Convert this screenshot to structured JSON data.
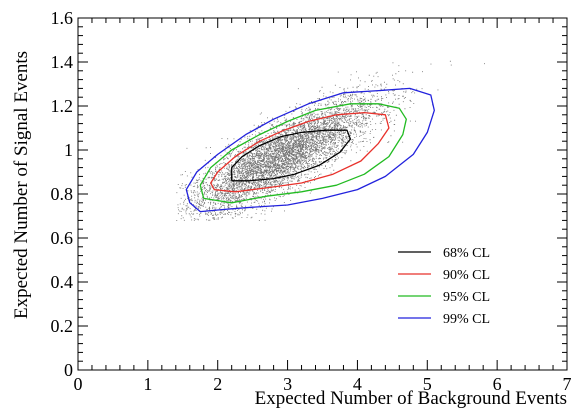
{
  "chart_data": {
    "type": "scatter",
    "title": "",
    "xlabel": "Expected Number of Background Events",
    "ylabel": "Expected Number of Signal Events",
    "xlim": [
      0,
      7
    ],
    "ylim": [
      0,
      1.6
    ],
    "x_ticks": [
      {
        "value": 0,
        "label": "0"
      },
      {
        "value": 1,
        "label": "1"
      },
      {
        "value": 2,
        "label": "2"
      },
      {
        "value": 3,
        "label": "3"
      },
      {
        "value": 4,
        "label": "4"
      },
      {
        "value": 5,
        "label": "5"
      },
      {
        "value": 6,
        "label": "6"
      },
      {
        "value": 7,
        "label": "7"
      }
    ],
    "y_ticks": [
      {
        "value": 0,
        "label": "0"
      },
      {
        "value": 0.2,
        "label": "0.2"
      },
      {
        "value": 0.4,
        "label": "0.4"
      },
      {
        "value": 0.6,
        "label": "0.6"
      },
      {
        "value": 0.8,
        "label": "0.8"
      },
      {
        "value": 1.0,
        "label": "1"
      },
      {
        "value": 1.2,
        "label": "1.2"
      },
      {
        "value": 1.4,
        "label": "1.4"
      },
      {
        "value": 1.6,
        "label": "1.6"
      }
    ],
    "grid": false,
    "legend_position": "bottom-right",
    "scatter_cloud": {
      "center_x": 2.9,
      "center_y": 0.97,
      "color": "#000000"
    },
    "series": [
      {
        "name": "68% CL",
        "kind": "contour",
        "color": "#000000",
        "points": [
          [
            2.2,
            0.86
          ],
          [
            2.45,
            0.86
          ],
          [
            2.8,
            0.87
          ],
          [
            3.1,
            0.89
          ],
          [
            3.45,
            0.93
          ],
          [
            3.75,
            0.99
          ],
          [
            3.9,
            1.05
          ],
          [
            3.85,
            1.09
          ],
          [
            3.55,
            1.09
          ],
          [
            3.2,
            1.08
          ],
          [
            2.9,
            1.06
          ],
          [
            2.6,
            1.02
          ],
          [
            2.35,
            0.97
          ],
          [
            2.2,
            0.92
          ],
          [
            2.2,
            0.86
          ]
        ]
      },
      {
        "name": "90% CL",
        "kind": "contour",
        "color": "#e8312b",
        "points": [
          [
            1.95,
            0.82
          ],
          [
            2.25,
            0.81
          ],
          [
            2.75,
            0.83
          ],
          [
            3.2,
            0.85
          ],
          [
            3.65,
            0.89
          ],
          [
            4.05,
            0.95
          ],
          [
            4.3,
            1.03
          ],
          [
            4.45,
            1.1
          ],
          [
            4.4,
            1.16
          ],
          [
            4.1,
            1.17
          ],
          [
            3.7,
            1.16
          ],
          [
            3.3,
            1.13
          ],
          [
            2.95,
            1.09
          ],
          [
            2.6,
            1.04
          ],
          [
            2.25,
            0.97
          ],
          [
            2.0,
            0.9
          ],
          [
            1.9,
            0.85
          ],
          [
            1.95,
            0.82
          ]
        ]
      },
      {
        "name": "95% CL",
        "kind": "contour",
        "color": "#22bb22",
        "points": [
          [
            1.8,
            0.78
          ],
          [
            2.2,
            0.76
          ],
          [
            2.7,
            0.79
          ],
          [
            3.2,
            0.81
          ],
          [
            3.7,
            0.84
          ],
          [
            4.1,
            0.89
          ],
          [
            4.45,
            0.97
          ],
          [
            4.65,
            1.07
          ],
          [
            4.7,
            1.14
          ],
          [
            4.6,
            1.19
          ],
          [
            4.3,
            1.21
          ],
          [
            3.9,
            1.21
          ],
          [
            3.4,
            1.18
          ],
          [
            3.0,
            1.13
          ],
          [
            2.6,
            1.07
          ],
          [
            2.2,
            1.0
          ],
          [
            1.9,
            0.92
          ],
          [
            1.75,
            0.84
          ],
          [
            1.8,
            0.78
          ]
        ]
      },
      {
        "name": "99% CL",
        "kind": "contour",
        "color": "#2222dd",
        "points": [
          [
            1.6,
            0.76
          ],
          [
            1.75,
            0.72
          ],
          [
            2.1,
            0.73
          ],
          [
            2.5,
            0.74
          ],
          [
            3.0,
            0.75
          ],
          [
            3.5,
            0.78
          ],
          [
            4.0,
            0.82
          ],
          [
            4.4,
            0.88
          ],
          [
            4.8,
            0.98
          ],
          [
            5.0,
            1.08
          ],
          [
            5.1,
            1.18
          ],
          [
            5.05,
            1.25
          ],
          [
            4.75,
            1.28
          ],
          [
            4.3,
            1.27
          ],
          [
            3.8,
            1.26
          ],
          [
            3.3,
            1.21
          ],
          [
            2.8,
            1.14
          ],
          [
            2.4,
            1.07
          ],
          [
            2.0,
            0.98
          ],
          [
            1.7,
            0.9
          ],
          [
            1.55,
            0.82
          ],
          [
            1.6,
            0.76
          ]
        ]
      }
    ]
  }
}
